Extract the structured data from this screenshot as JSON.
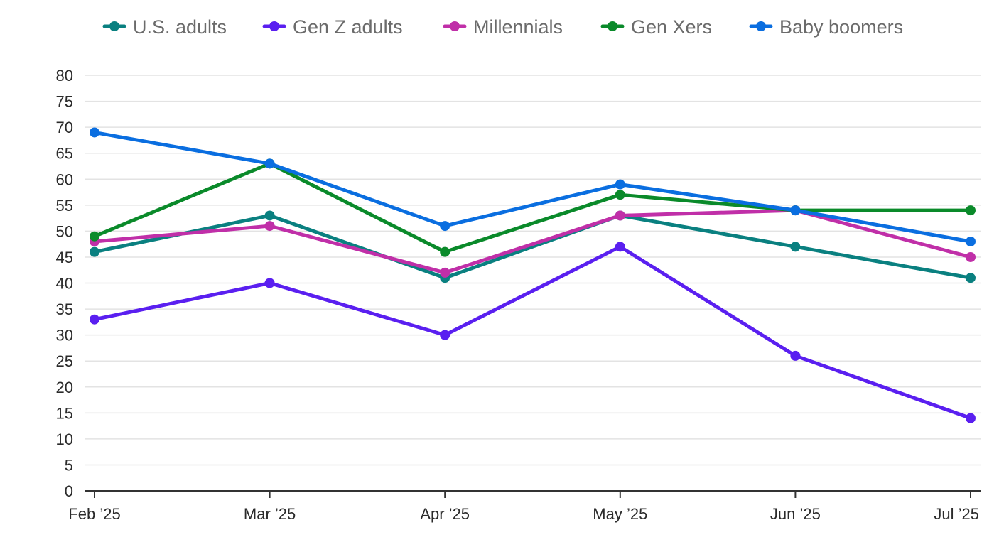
{
  "chart_data": {
    "type": "line",
    "categories": [
      "Feb ’25",
      "Mar ’25",
      "Apr ’25",
      "May ’25",
      "Jun ’25",
      "Jul ’25"
    ],
    "series": [
      {
        "name": "U.S. adults",
        "color": "#0a8080",
        "values": [
          46,
          53,
          41,
          53,
          47,
          41
        ]
      },
      {
        "name": "Gen Z adults",
        "color": "#5a1ff0",
        "values": [
          33,
          40,
          30,
          47,
          26,
          14
        ]
      },
      {
        "name": "Millennials",
        "color": "#c02fa8",
        "values": [
          48,
          51,
          42,
          53,
          54,
          45
        ]
      },
      {
        "name": "Gen Xers",
        "color": "#0a8a2a",
        "values": [
          49,
          63,
          46,
          57,
          54,
          54
        ]
      },
      {
        "name": "Baby boomers",
        "color": "#0a6ee0",
        "values": [
          69,
          63,
          51,
          59,
          54,
          48
        ]
      }
    ],
    "yticks": [
      0,
      5,
      10,
      15,
      20,
      25,
      30,
      35,
      40,
      45,
      50,
      55,
      60,
      65,
      70,
      75,
      80
    ],
    "ylim": [
      0,
      80
    ],
    "grid": true,
    "legend_position": "top"
  }
}
